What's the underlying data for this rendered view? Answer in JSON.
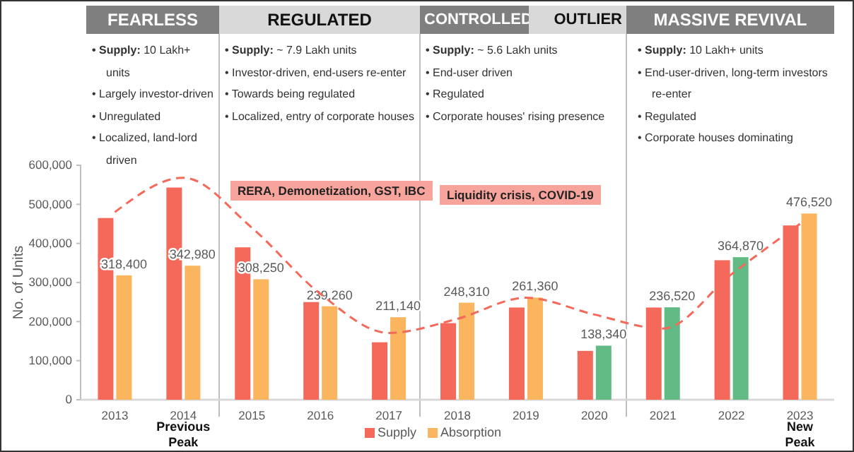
{
  "chart_data": {
    "type": "bar",
    "ylabel": "No. of Units",
    "categories": [
      "2013",
      "2014",
      "2015",
      "2016",
      "2017",
      "2018",
      "2019",
      "2020",
      "2021",
      "2022",
      "2023"
    ],
    "series": [
      {
        "name": "Supply",
        "color": "#f4695a",
        "values": [
          465000,
          543000,
          390000,
          250000,
          147000,
          196000,
          236000,
          125000,
          236000,
          357000,
          446000
        ]
      },
      {
        "name": "Absorption",
        "color": "#fbb55e",
        "colors": [
          "#fbb55e",
          "#fbb55e",
          "#fbb55e",
          "#fbb55e",
          "#fbb55e",
          "#fbb55e",
          "#fbb55e",
          "#62bb84",
          "#62bb84",
          "#62bb84",
          "#fbb55e"
        ],
        "values": [
          318400,
          342980,
          308250,
          239260,
          211140,
          248310,
          261360,
          138340,
          236520,
          364870,
          476520
        ],
        "value_labels": [
          "318,400",
          "342,980",
          "308,250",
          "239,260",
          "211,140",
          "248,310",
          "261,360",
          "138,340",
          "236,520",
          "364,870",
          "476,520"
        ]
      },
      {
        "type": "line",
        "color": "#f4695a",
        "line_style": "dashed",
        "marker": "none",
        "values": [
          480000,
          568000,
          440000,
          271000,
          171000,
          207000,
          261000,
          218000,
          182000,
          321000,
          450000
        ]
      }
    ],
    "ylim": [
      0,
      600000
    ],
    "yticks": [
      {
        "value": 0,
        "label": "0"
      },
      {
        "value": 100000,
        "label": "100,000"
      },
      {
        "value": 200000,
        "label": "200,000"
      },
      {
        "value": 300000,
        "label": "300,000"
      },
      {
        "value": 400000,
        "label": "400,000"
      },
      {
        "value": 500000,
        "label": "500,000"
      },
      {
        "value": 600000,
        "label": "600,000"
      }
    ],
    "legend": "bottom",
    "annotations": [
      "FEARLESS",
      "• Supply: 10 Lakh+ units",
      "• Largely investor-driven",
      "• Unregulated",
      "• Localized, land-lord driven",
      "REGULATED",
      "• Supply: ~ 7.9 Lakh units",
      "• Investor-driven, end-users re-enter",
      "• Towards being regulated",
      "• Localized, entry of corporate houses",
      "RERA, Demonetization, GST, IBC",
      "CONTROLLED",
      "OUTLIER",
      "• Supply: ~ 5.6 Lakh units",
      "• End-user driven",
      "• Regulated",
      "• Corporate houses' rising presence",
      "Liquidity crisis, COVID-19",
      "MASSIVE REVIVAL",
      "• Supply: 10 Lakh+ units",
      "• End-user-driven, long-term investors re-enter",
      "• Regulated",
      "• Corporate houses dominating",
      "Previous Peak",
      "New Peak"
    ]
  }
}
